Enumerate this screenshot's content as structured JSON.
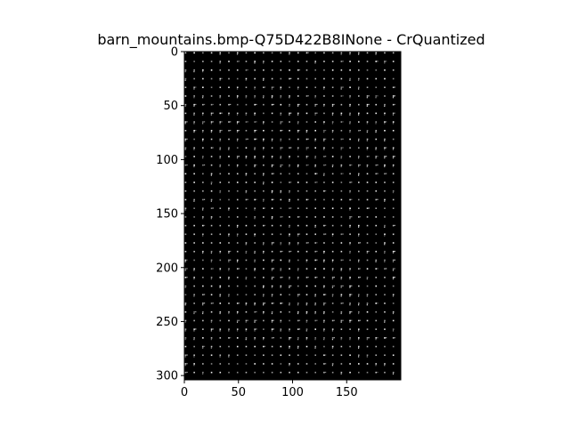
{
  "figure": {
    "background": "#ffffff"
  },
  "chart_data": {
    "type": "heatmap",
    "title": "barn_mountains.bmp-Q75D422B8INone - CrQuantized",
    "xlabel": "",
    "ylabel": "",
    "image_size": {
      "width": 200,
      "height": 304
    },
    "block_size": 8,
    "xlim": [
      0,
      200
    ],
    "ylim": [
      304,
      0
    ],
    "x_ticks": [
      0,
      50,
      100,
      150
    ],
    "y_ticks": [
      0,
      50,
      100,
      150,
      200,
      250,
      300
    ],
    "background_color": "#000000",
    "coefficient_color": "#ffffff",
    "grid": false,
    "colorbar": false
  }
}
